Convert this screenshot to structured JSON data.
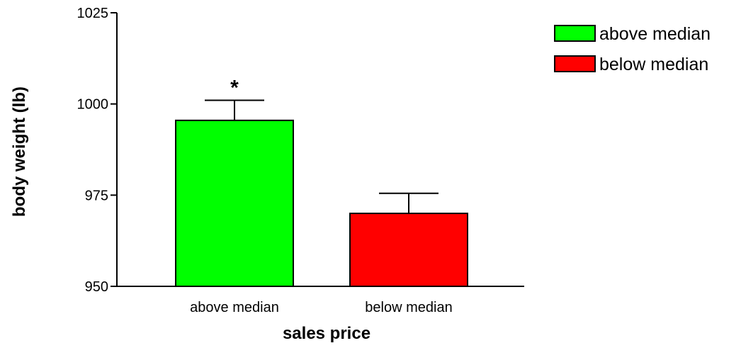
{
  "chart_data": {
    "type": "bar",
    "categories": [
      "above median",
      "below median"
    ],
    "values": [
      995.5,
      970.0
    ],
    "errors": [
      5.5,
      5.5
    ],
    "colors": [
      "#00ff00",
      "#ff0000"
    ],
    "annotations": [
      "*",
      ""
    ],
    "xlabel": "sales price",
    "ylabel": "body weight (lb)",
    "ylim": [
      950,
      1025
    ],
    "yticks": [
      950,
      975,
      1000,
      1025
    ],
    "grid": false,
    "legend": {
      "position": "top-right",
      "entries": [
        {
          "label": "above median",
          "color": "#00ff00"
        },
        {
          "label": "below median",
          "color": "#ff0000"
        }
      ]
    }
  }
}
